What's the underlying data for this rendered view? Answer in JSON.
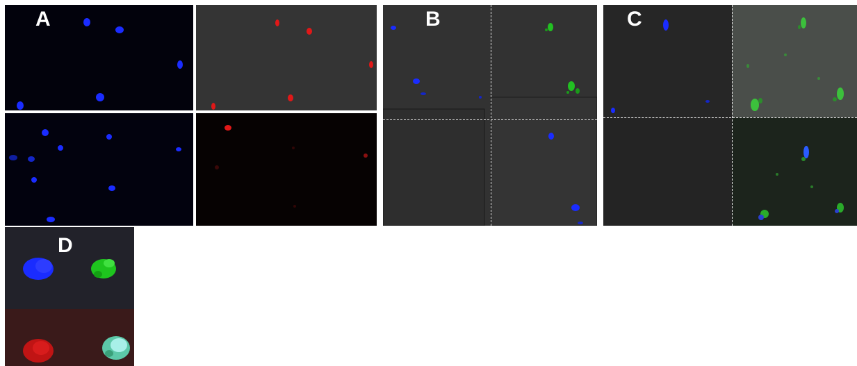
{
  "panels": {
    "a": {
      "label": "A"
    },
    "b": {
      "label": "B"
    },
    "c": {
      "label": "C"
    },
    "d": {
      "label": "D"
    }
  },
  "colors": {
    "nucleus_blue": "#1a2cff",
    "marker_red": "#e01818",
    "marker_green": "#22c022",
    "merge_cyan": "#9ee8e0",
    "background_dark": "#050505",
    "background_gray": "#383838"
  }
}
